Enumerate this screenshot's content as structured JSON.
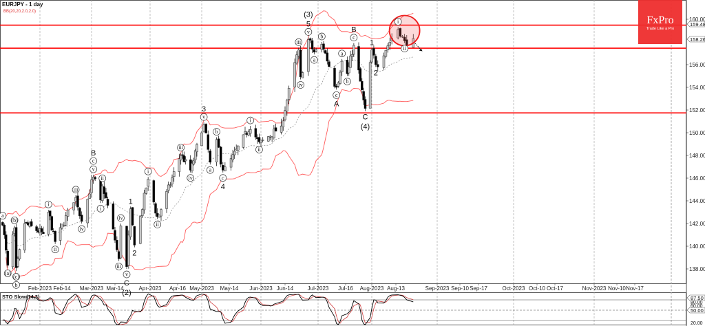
{
  "header": {
    "symbol_title": "EURJPY - 1 day",
    "indicator_label": "BB(20,20,2.0,2.0)"
  },
  "logo": {
    "name": "FxPro",
    "tagline": "Trade Like a Pro"
  },
  "colors": {
    "brand_red": "#ee2d2d",
    "level_line": "#ff0000",
    "bollinger": "#ff5a5a",
    "bull_candle": "#c8c8c8",
    "bear_candle": "#000000",
    "stoch_main": "#000000",
    "stoch_signal": "#d04040"
  },
  "chart_data": [
    {
      "type": "candlestick",
      "symbol": "EURJPY",
      "timeframe": "1 day",
      "grid": "vertical dashed at month starts",
      "y_axis": {
        "side": "right",
        "ticks": [
          "160.000",
          "156.000",
          "154.000",
          "152.000",
          "150.000",
          "148.000",
          "146.000",
          "144.000",
          "142.000",
          "140.000",
          "138.000"
        ],
        "range": [
          137.0,
          161.5
        ]
      },
      "x_axis": {
        "ticks": [
          {
            "label": "Feb-2023",
            "date": "2023-02-01"
          },
          {
            "label": "Feb-14",
            "date": "2023-02-14"
          },
          {
            "label": "Mar-2023",
            "date": "2023-03-01"
          },
          {
            "label": "Mar-14",
            "date": "2023-03-14"
          },
          {
            "label": "Apr-2023",
            "date": "2023-04-01"
          },
          {
            "label": "Apr-16",
            "date": "2023-04-16"
          },
          {
            "label": "May-2023",
            "date": "2023-05-01"
          },
          {
            "label": "May-14",
            "date": "2023-05-14"
          },
          {
            "label": "Jun-2023",
            "date": "2023-06-01"
          },
          {
            "label": "Jun-14",
            "date": "2023-06-14"
          },
          {
            "label": "Jul-2023",
            "date": "2023-07-01"
          },
          {
            "label": "Jul-16",
            "date": "2023-07-16"
          },
          {
            "label": "Aug-2023",
            "date": "2023-08-01"
          },
          {
            "label": "Aug-13",
            "date": "2023-08-13"
          },
          {
            "label": "Sep-2023",
            "date": "2023-09-01"
          },
          {
            "label": "Sep-10",
            "date": "2023-09-10"
          },
          {
            "label": "Sep-17",
            "date": "2023-09-17"
          },
          {
            "label": "Oct-2023",
            "date": "2023-10-01"
          },
          {
            "label": "Oct-10",
            "date": "2023-10-10"
          },
          {
            "label": "Oct-17",
            "date": "2023-10-17"
          },
          {
            "label": "Nov-2023",
            "date": "2023-11-01"
          },
          {
            "label": "Nov-10",
            "date": "2023-11-10"
          },
          {
            "label": "Nov-17",
            "date": "2023-11-17"
          }
        ]
      },
      "price_path": [
        {
          "date": "2023-01-10",
          "price": 142.2,
          "side": "above",
          "labels": [
            "a"
          ]
        },
        {
          "date": "2023-01-13",
          "price": 138.1,
          "side": "below",
          "labels": [
            "(a)"
          ]
        },
        {
          "date": "2023-01-17",
          "price": 141.8,
          "side": "above",
          "labels": [
            "(b)"
          ]
        },
        {
          "date": "2023-01-18",
          "price": 137.8,
          "side": "below",
          "labels": [
            "(c)",
            "b"
          ]
        },
        {
          "date": "2023-01-23",
          "price": 142.0
        },
        {
          "date": "2023-02-03",
          "price": 141.1
        },
        {
          "date": "2023-02-06",
          "price": 143.2,
          "side": "above",
          "labels": [
            "i"
          ]
        },
        {
          "date": "2023-02-10",
          "price": 140.2,
          "side": "below",
          "labels": [
            "ii"
          ]
        },
        {
          "date": "2023-02-21",
          "price": 144.5,
          "side": "above",
          "labels": [
            "iii"
          ]
        },
        {
          "date": "2023-02-24",
          "price": 142.0,
          "side": "below",
          "labels": [
            "iv"
          ]
        },
        {
          "date": "2023-03-02",
          "price": 146.3,
          "side": "above",
          "labels": [
            "v",
            "c",
            "B"
          ]
        },
        {
          "date": "2023-03-06",
          "price": 143.8,
          "side": "below",
          "labels": [
            "i"
          ]
        },
        {
          "date": "2023-03-07",
          "price": 145.5,
          "side": "above",
          "labels": [
            "ii"
          ]
        },
        {
          "date": "2023-03-13",
          "price": 141.5
        },
        {
          "date": "2023-03-16",
          "price": 138.7,
          "side": "below",
          "labels": [
            "iii"
          ]
        },
        {
          "date": "2023-03-17",
          "price": 142.0,
          "side": "above",
          "labels": [
            "iv"
          ]
        },
        {
          "date": "2023-03-20",
          "price": 138.0,
          "side": "below",
          "labels": [
            "v",
            "C",
            "(2)"
          ]
        },
        {
          "date": "2023-03-22",
          "price": 143.5,
          "side": "above",
          "labels": [
            "1"
          ]
        },
        {
          "date": "2023-03-24",
          "price": 139.9,
          "side": "below",
          "labels": [
            "2"
          ]
        },
        {
          "date": "2023-03-31",
          "price": 146.1,
          "side": "above",
          "labels": [
            "i"
          ]
        },
        {
          "date": "2023-04-05",
          "price": 142.4,
          "side": "below",
          "labels": [
            "ii"
          ]
        },
        {
          "date": "2023-04-18",
          "price": 148.2,
          "side": "above",
          "labels": [
            "iii"
          ]
        },
        {
          "date": "2023-04-24",
          "price": 146.5,
          "side": "below",
          "labels": [
            "iv"
          ]
        },
        {
          "date": "2023-05-02",
          "price": 150.9,
          "side": "above",
          "labels": [
            "v",
            "3"
          ]
        },
        {
          "date": "2023-05-05",
          "price": 147.2,
          "side": "below",
          "labels": [
            "a"
          ]
        },
        {
          "date": "2023-05-08",
          "price": 149.6,
          "side": "above",
          "labels": [
            "b"
          ]
        },
        {
          "date": "2023-05-11",
          "price": 146.5,
          "side": "below",
          "labels": [
            "c",
            "4"
          ]
        },
        {
          "date": "2023-05-26",
          "price": 150.6,
          "side": "above",
          "labels": [
            "i"
          ]
        },
        {
          "date": "2023-05-31",
          "price": 149.0,
          "side": "below",
          "labels": [
            "ii"
          ]
        },
        {
          "date": "2023-06-12",
          "price": 150.6
        },
        {
          "date": "2023-06-21",
          "price": 157.5,
          "side": "above",
          "labels": [
            "iii"
          ]
        },
        {
          "date": "2023-06-22",
          "price": 154.7,
          "side": "below",
          "labels": [
            "iv"
          ]
        },
        {
          "date": "2023-06-26",
          "price": 158.4,
          "side": "above",
          "labels": [
            "v",
            "5",
            "(3)"
          ]
        },
        {
          "date": "2023-06-29",
          "price": 156.9,
          "side": "below",
          "labels": [
            "a"
          ]
        },
        {
          "date": "2023-07-03",
          "price": 158.0,
          "side": "above",
          "labels": [
            "b"
          ]
        },
        {
          "date": "2023-07-11",
          "price": 153.8,
          "side": "below",
          "labels": [
            "c",
            "A"
          ]
        },
        {
          "date": "2023-07-14",
          "price": 156.5,
          "side": "above",
          "labels": [
            "a"
          ]
        },
        {
          "date": "2023-07-17",
          "price": 155.0,
          "side": "below",
          "labels": [
            "b"
          ]
        },
        {
          "date": "2023-07-21",
          "price": 157.9,
          "side": "above",
          "labels": [
            "c",
            "B"
          ]
        },
        {
          "date": "2023-07-28",
          "price": 151.9,
          "side": "below",
          "labels": [
            "C",
            "(4)"
          ]
        },
        {
          "date": "2023-08-01",
          "price": 157.5,
          "side": "above",
          "labels": [
            "1"
          ]
        },
        {
          "date": "2023-08-03",
          "price": 155.8,
          "side": "below",
          "labels": [
            "2"
          ]
        },
        {
          "date": "2023-08-14",
          "price": 159.3,
          "side": "above",
          "labels": [
            "i"
          ]
        },
        {
          "date": "2023-08-17",
          "price": 157.9,
          "side": "below",
          "labels": [
            "ii"
          ]
        },
        {
          "date": "2023-08-21",
          "price": 158.3
        }
      ],
      "horizontal_levels": [
        159.483,
        157.45,
        151.75
      ],
      "level_price_label": "159.483",
      "current_price_label": "158.269",
      "highlight": {
        "date": "2023-08-17",
        "price": 159.0
      },
      "projection_arrow": {
        "direction": "down"
      },
      "overlay": {
        "name": "BB(20,20,2.0,2.0)",
        "period": 20,
        "deviations": 2
      }
    },
    {
      "type": "line",
      "title": "STO Slow(14,3)",
      "k_period": 14,
      "slowing": 3,
      "d_period": 3,
      "levels": [
        80,
        50,
        20
      ],
      "y_labels": [
        "87.50",
        "80.00",
        "60.00",
        "50.00",
        "20.00"
      ],
      "current_value_label": "87.50"
    }
  ]
}
